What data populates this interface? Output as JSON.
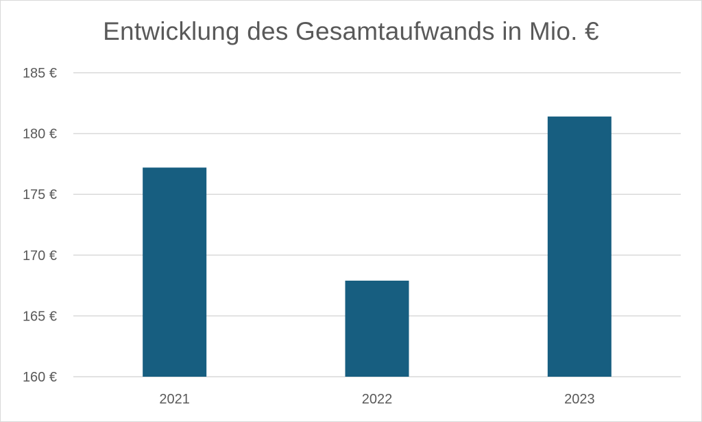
{
  "chart_data": {
    "type": "bar",
    "title": "Entwicklung des Gesamtaufwands in Mio. €",
    "xlabel": "",
    "ylabel": "",
    "categories": [
      "2021",
      "2022",
      "2023"
    ],
    "values": [
      177.2,
      167.9,
      181.4
    ],
    "ylim": [
      160,
      185
    ],
    "yticks": [
      160,
      165,
      170,
      175,
      180,
      185
    ],
    "ytick_labels": [
      "160 €",
      "165 €",
      "170 €",
      "175 €",
      "180 €",
      "185 €"
    ],
    "grid": true,
    "legend": "none",
    "bar_color": "#175E80",
    "grid_color": "#D9D9D9"
  }
}
